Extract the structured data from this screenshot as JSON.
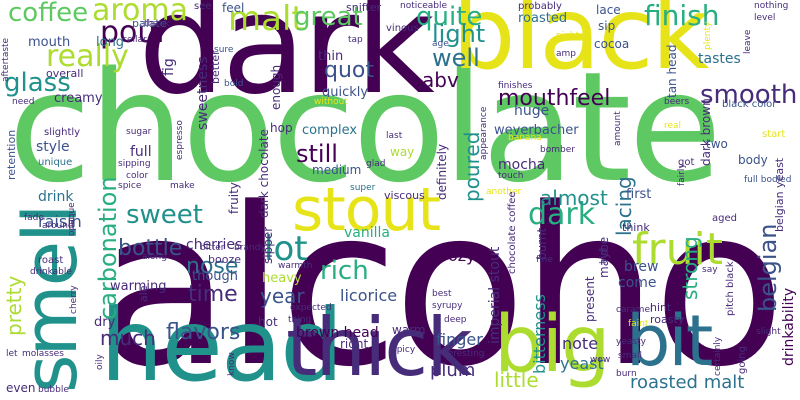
{
  "palette": {
    "purple": "#440154",
    "indigo": "#472c7a",
    "blue": "#3b528b",
    "slate": "#2c728e",
    "teal": "#21918c",
    "green": "#28ae80",
    "lime": "#5ec962",
    "yellowgreen": "#addc30",
    "yellow": "#e6e419"
  },
  "words": [
    "alcohol",
    "chocolate",
    "dark",
    "black",
    "head",
    "thick",
    "big",
    "bit",
    "smell",
    "stout",
    "fruit",
    "dark",
    "malt",
    "aroma",
    "coffee",
    "pour",
    "really",
    "glass",
    "great",
    "quite",
    "finish",
    "light",
    "well",
    "mouthfeel",
    "smooth",
    "quot",
    "abv",
    "sweet",
    "carbonation",
    "lot",
    "nose",
    "bottle",
    "pretty",
    "time",
    "year",
    "rich",
    "flavors",
    "much",
    "belgian",
    "still",
    "poured",
    "almost",
    "lacing",
    "strong",
    "brown head",
    "roasted malt",
    "little",
    "finger",
    "plum",
    "bitterness",
    "imperial stout",
    "licorice",
    "vanilla",
    "boozy",
    "yeast",
    "note",
    "come",
    "brew",
    "cherries",
    "raisin",
    "drink",
    "style",
    "full",
    "creamy",
    "mouth",
    "long",
    "palate",
    "fig",
    "sweetness",
    "feel",
    "enough",
    "hop",
    "thin",
    "quickly",
    "complex",
    "medium",
    "mocha",
    "huge",
    "weyerbacher",
    "tan head",
    "tastes",
    "cocoa",
    "sip",
    "lace",
    "roasted",
    "probably",
    "noticeable",
    "snifter",
    "see",
    "thank",
    "cellar",
    "overall",
    "retention",
    "unique",
    "slightly",
    "aftertaste",
    "need",
    "better",
    "sure",
    "bold",
    "without",
    "tap",
    "vinous",
    "age",
    "amp",
    "night",
    "plenty",
    "leave",
    "nothing",
    "level",
    "black color",
    "full bodied",
    "belgian yeast",
    "drinkability",
    "dark brown",
    "two",
    "body",
    "start",
    "got",
    "real",
    "beers",
    "finishes",
    "appearance",
    "definitely",
    "way",
    "last",
    "glad",
    "super",
    "viscous",
    "touch",
    "another",
    "bomber",
    "amount",
    "chocolate coffee",
    "dark chocolate",
    "fruity",
    "sipper",
    "though",
    "booze",
    "heavy",
    "hot",
    "warm",
    "right",
    "thing",
    "expected",
    "spicy",
    "deep",
    "interesting",
    "present",
    "maybe",
    "high",
    "fine",
    "best",
    "syrupy",
    "burnt",
    "first",
    "think",
    "fairly",
    "aged",
    "say",
    "pitch black",
    "slight",
    "going",
    "certainly",
    "burn",
    "small",
    "wow",
    "yeasty",
    "hint",
    "roasty",
    "caramel",
    "faint",
    "banana",
    "warming",
    "dry",
    "bitter",
    "brandy",
    "along",
    "warmth",
    "espresso",
    "sugar",
    "sipping",
    "color",
    "spice",
    "make",
    "cherry",
    "ale",
    "know",
    "oily",
    "bubble",
    "even",
    "let",
    "molasses",
    "drinkable",
    "roast",
    "around",
    "fade",
    "opaque"
  ]
}
